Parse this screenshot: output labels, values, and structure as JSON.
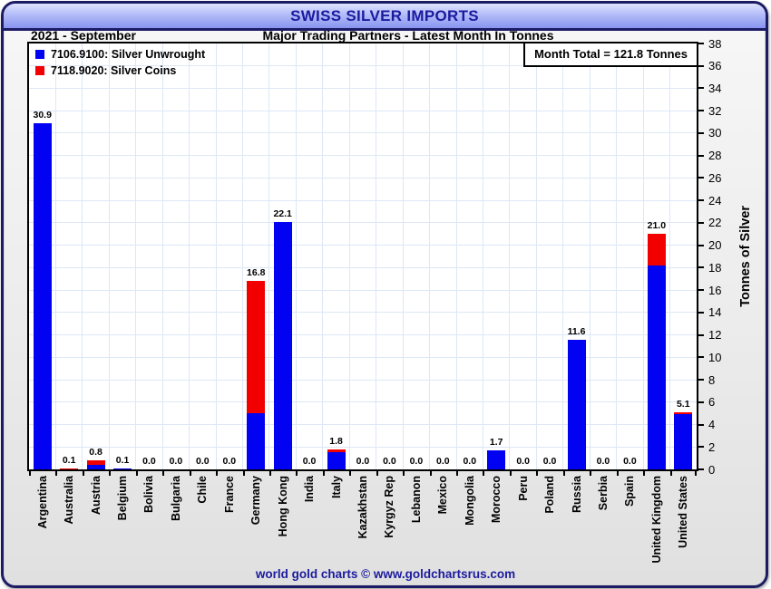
{
  "header": {
    "title": "SWISS SILVER IMPORTS",
    "period": "2021 - September",
    "subtitle": "Major Trading Partners - Latest Month In Tonnes"
  },
  "footer": {
    "text": "world gold charts © www.goldchartsrus.com"
  },
  "colors": {
    "accent_navy": "#1b1b9e",
    "frame_border": "#1c1c64",
    "gridline": "#dde7f6",
    "bar_blue": "#0202f2",
    "bar_red": "#f20000"
  },
  "chart_data": {
    "type": "bar",
    "stacked": true,
    "title": "SWISS SILVER IMPORTS",
    "subtitle": "Major Trading Partners - Latest Month In Tonnes",
    "period": "2021 - September",
    "month_total_label": "Month Total = 121.8 Tonnes",
    "ylabel": "Tonnes of Silver",
    "ylim": [
      0,
      38
    ],
    "ytick_step": 2,
    "grid": true,
    "legend_position": "top-left",
    "categories": [
      "Argentina",
      "Australia",
      "Austria",
      "Belgium",
      "Bolivia",
      "Bulgaria",
      "Chile",
      "France",
      "Germany",
      "Hong Kong",
      "India",
      "Italy",
      "Kazakhstan",
      "Kyrgyz Rep",
      "Lebanon",
      "Mexico",
      "Mongolia",
      "Morocco",
      "Peru",
      "Poland",
      "Russia",
      "Serbia",
      "Spain",
      "United Kingdom",
      "United States"
    ],
    "series": [
      {
        "name": "7106.9100: Silver Unwrought",
        "color": "#0202f2",
        "values": [
          30.9,
          0.0,
          0.4,
          0.1,
          0.0,
          0.0,
          0.0,
          0.0,
          5.0,
          22.1,
          0.0,
          1.5,
          0.0,
          0.0,
          0.0,
          0.0,
          0.0,
          1.7,
          0.0,
          0.0,
          11.6,
          0.0,
          0.0,
          18.2,
          4.9
        ]
      },
      {
        "name": "7118.9020: Silver Coins",
        "color": "#f20000",
        "values": [
          0.0,
          0.1,
          0.4,
          0.0,
          0.0,
          0.0,
          0.0,
          0.0,
          11.8,
          0.0,
          0.0,
          0.3,
          0.0,
          0.0,
          0.0,
          0.0,
          0.0,
          0.0,
          0.0,
          0.0,
          0.0,
          0.0,
          0.0,
          2.8,
          0.2
        ]
      }
    ],
    "bar_total_labels": [
      "30.9",
      "0.1",
      "0.8",
      "0.1",
      "0.0",
      "0.0",
      "0.0",
      "0.0",
      "16.8",
      "22.1",
      "0.0",
      "1.8",
      "0.0",
      "0.0",
      "0.0",
      "0.0",
      "0.0",
      "1.7",
      "0.0",
      "0.0",
      "11.6",
      "0.0",
      "0.0",
      "21.0",
      "5.1"
    ]
  }
}
